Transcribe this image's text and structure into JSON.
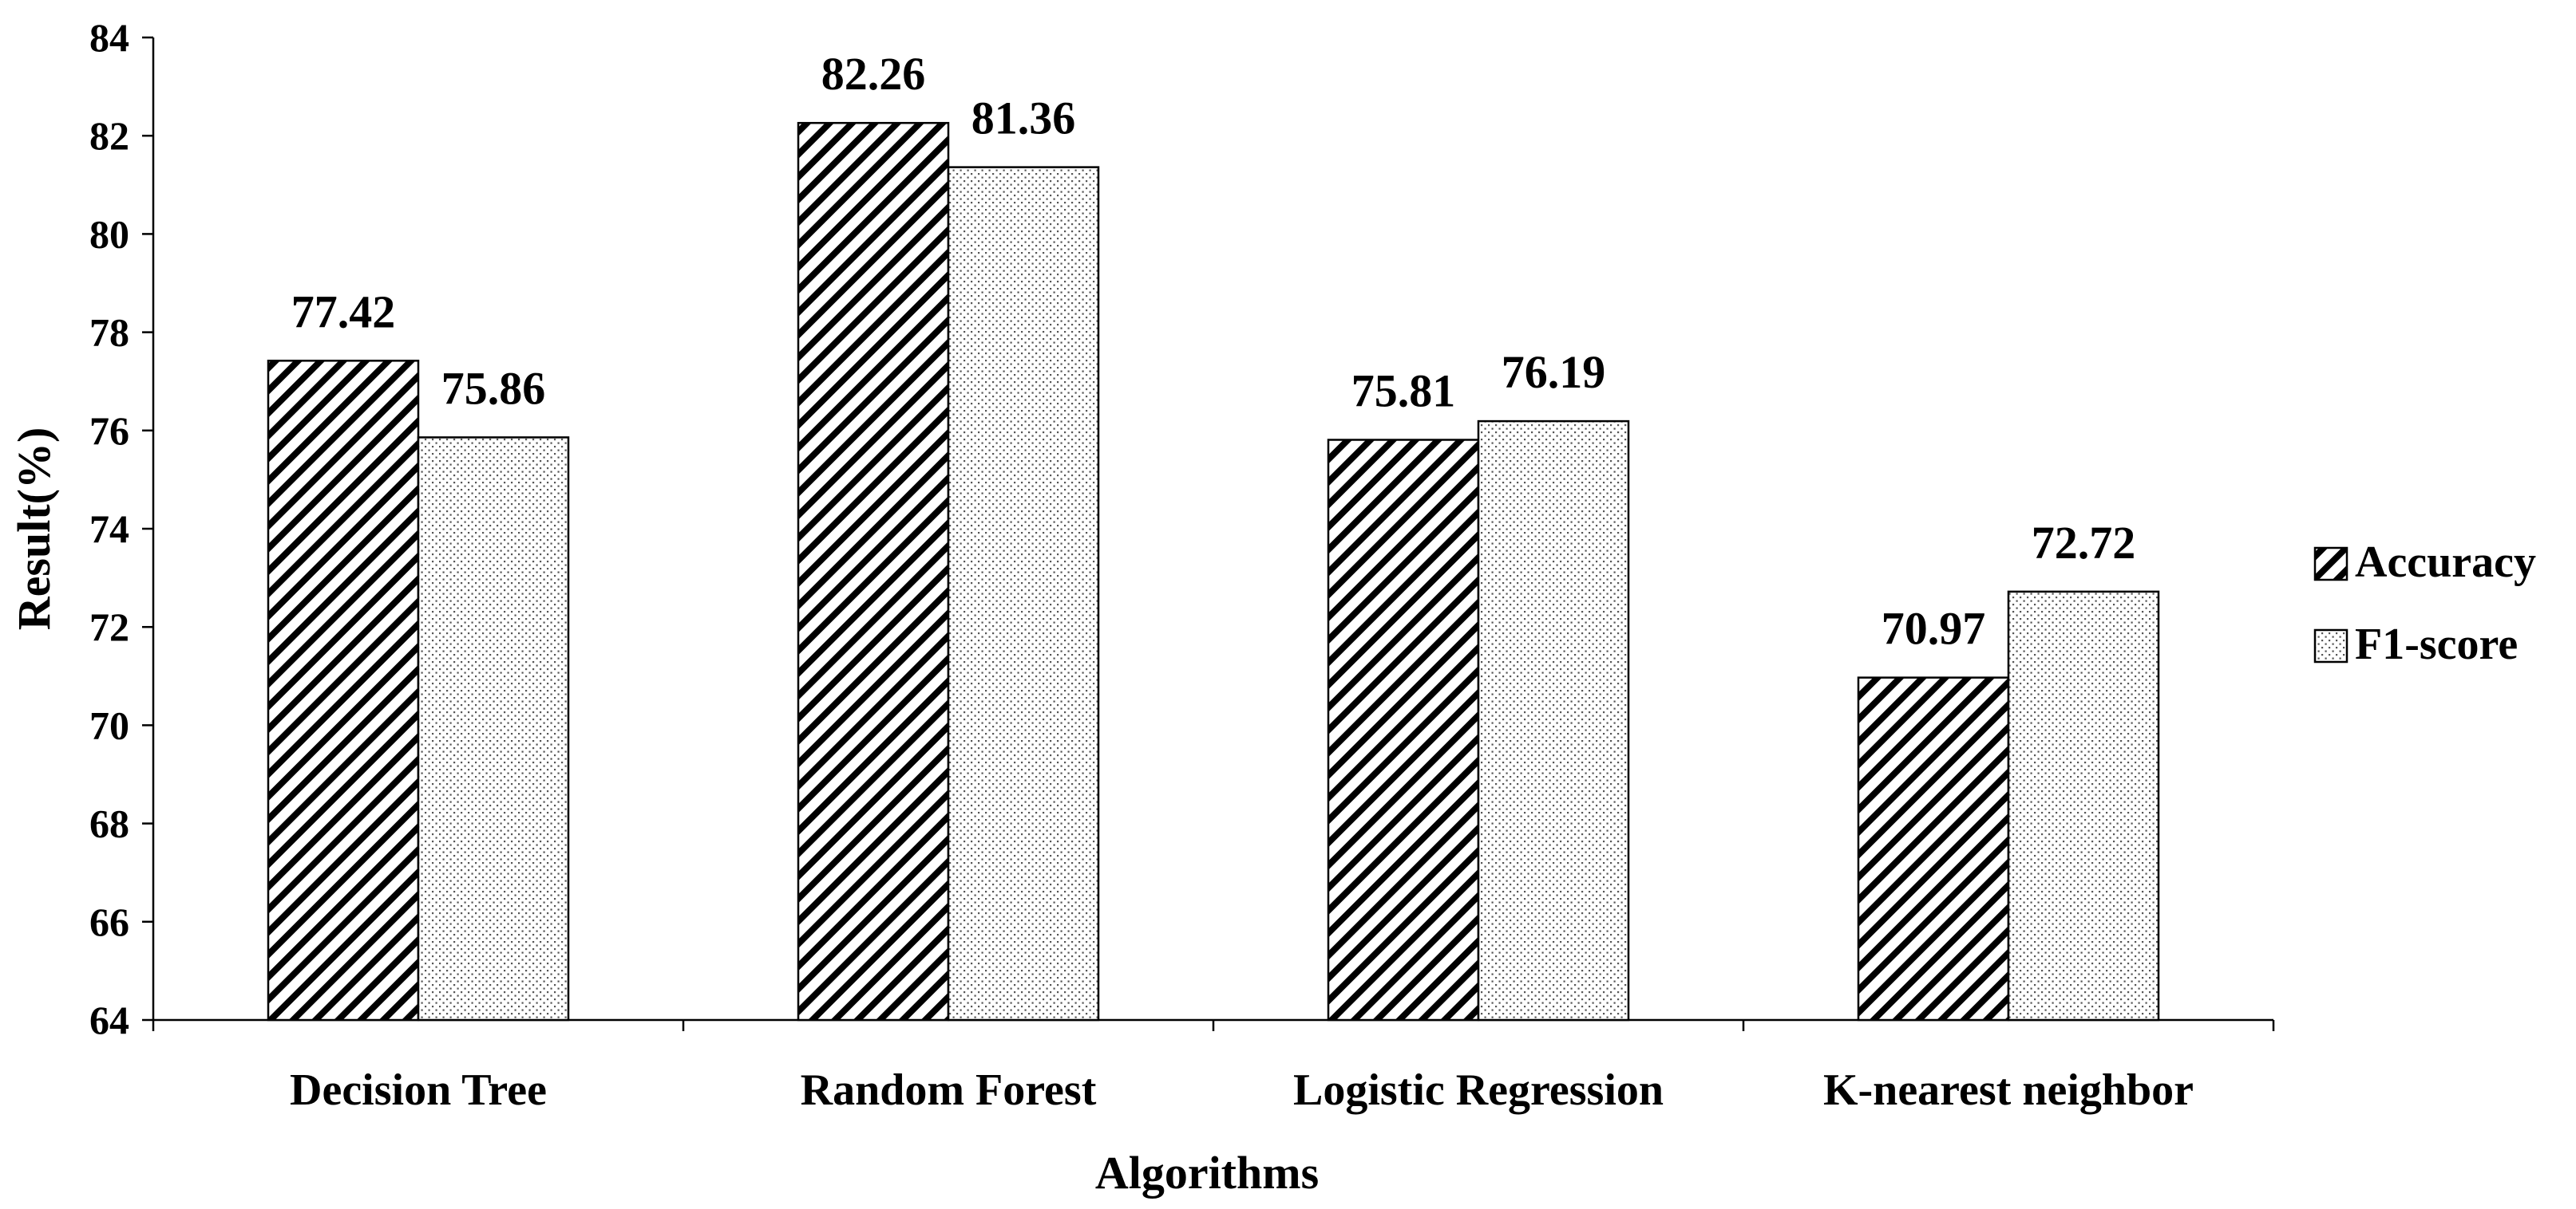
{
  "chart_data": {
    "type": "bar",
    "title": "",
    "xlabel": "Algorithms",
    "ylabel": "Result(%)",
    "ylim": [
      64,
      84
    ],
    "yticks": [
      64,
      66,
      68,
      70,
      72,
      74,
      76,
      78,
      80,
      82,
      84
    ],
    "categories": [
      "Decision Tree",
      "Random Forest",
      "Logistic Regression",
      "K-nearest neighbor"
    ],
    "series": [
      {
        "name": "Accuracy",
        "values": [
          77.42,
          82.26,
          75.81,
          70.97
        ],
        "pattern": "diagonal-hatch"
      },
      {
        "name": "F1-score",
        "values": [
          75.86,
          81.36,
          76.19,
          72.72
        ],
        "pattern": "dots"
      }
    ],
    "data_labels": [
      [
        "77.42",
        "82.26",
        "75.81",
        "70.97"
      ],
      [
        "75.86",
        "81.36",
        "76.19",
        "72.72"
      ]
    ],
    "grid": false,
    "legend_position": "right"
  },
  "colors": {
    "bar_stroke": "#000000",
    "pattern_ink": "#000000",
    "background": "#ffffff"
  }
}
